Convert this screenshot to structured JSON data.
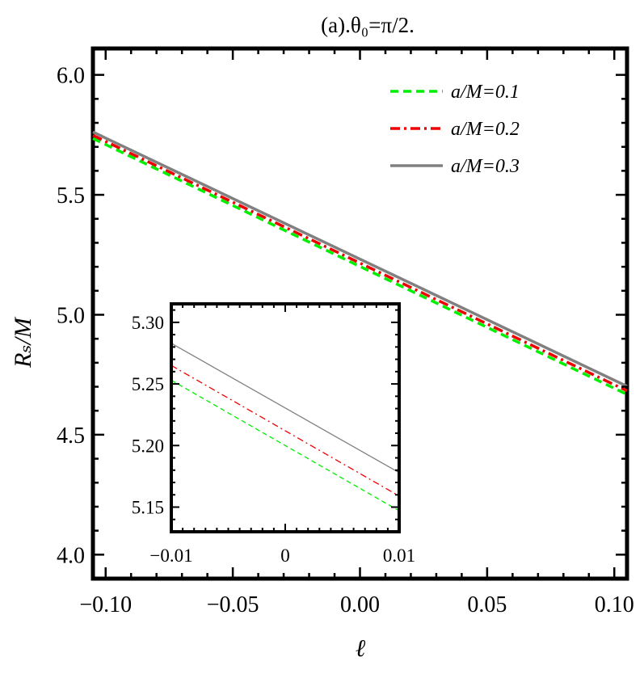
{
  "chart_data": {
    "type": "line",
    "title": "(a).θ₀=π/2.",
    "xlabel": "ℓ",
    "ylabel": "Rₛ/M",
    "xlim": [
      -0.105,
      0.105
    ],
    "ylim": [
      3.9,
      6.11
    ],
    "xticks": [
      -0.1,
      -0.05,
      0.0,
      0.05,
      0.1
    ],
    "xtick_labels": [
      "−0.10",
      "−0.05",
      "0.00",
      "0.05",
      "0.10"
    ],
    "yticks": [
      4.0,
      4.5,
      5.0,
      5.5,
      6.0
    ],
    "ytick_labels": [
      "4.0",
      "4.5",
      "5.0",
      "5.5",
      "6.0"
    ],
    "legend_position": "top-right",
    "grid": false,
    "series": [
      {
        "name": "a/M=0.1",
        "color": "#00ee00",
        "style": "dashed",
        "x": [
          -0.105,
          0.105
        ],
        "y": [
          5.735,
          4.668
        ]
      },
      {
        "name": "a/M=0.2",
        "color": "#ee0000",
        "style": "dashdot",
        "x": [
          -0.105,
          0.105
        ],
        "y": [
          5.748,
          4.683
        ]
      },
      {
        "name": "a/M=0.3",
        "color": "#808080",
        "style": "solid",
        "x": [
          -0.105,
          0.105
        ],
        "y": [
          5.762,
          4.702
        ]
      }
    ],
    "inset": {
      "xlim": [
        -0.01,
        0.01
      ],
      "ylim": [
        5.13,
        5.315
      ],
      "xticks": [
        -0.01,
        0,
        0.01
      ],
      "xtick_labels": [
        "−0.01",
        "0",
        "0.01"
      ],
      "yticks": [
        5.15,
        5.2,
        5.25,
        5.3
      ],
      "ytick_labels": [
        "5.15",
        "5.20",
        "5.25",
        "5.30"
      ],
      "series": [
        {
          "name": "a/M=0.1",
          "x": [
            -0.01,
            0.01
          ],
          "y": [
            5.253,
            5.147
          ]
        },
        {
          "name": "a/M=0.2",
          "x": [
            -0.01,
            0.01
          ],
          "y": [
            5.265,
            5.159
          ]
        },
        {
          "name": "a/M=0.3",
          "x": [
            -0.01,
            0.01
          ],
          "y": [
            5.283,
            5.178
          ]
        }
      ]
    }
  }
}
